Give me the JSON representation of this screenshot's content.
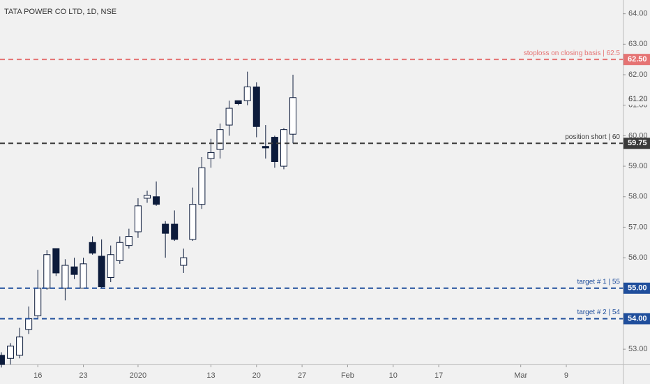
{
  "chart_data": {
    "type": "candlestick",
    "title": "TATA POWER CO LTD, 1D, NSE",
    "open": [
      52.8,
      52.7,
      52.8,
      53.65,
      54.1,
      55.0,
      56.3,
      55.0,
      55.7,
      55.0,
      56.5,
      56.05,
      55.35,
      55.9,
      56.4,
      56.85,
      57.95,
      58.0,
      57.1,
      57.1,
      55.75,
      56.6,
      57.75,
      59.25,
      59.55,
      60.35,
      61.15,
      61.15,
      61.6,
      59.65,
      59.95,
      59.0,
      60.05
    ],
    "high": [
      52.9,
      53.2,
      53.7,
      54.4,
      55.6,
      56.25,
      56.3,
      55.95,
      56.0,
      56.0,
      56.7,
      56.6,
      56.4,
      56.7,
      56.95,
      57.95,
      58.2,
      58.5,
      57.2,
      57.55,
      56.3,
      58.3,
      59.3,
      59.9,
      60.4,
      61.15,
      61.15,
      62.1,
      61.75,
      60.35,
      60.0,
      60.25,
      62.0
    ],
    "low": [
      52.4,
      52.5,
      52.7,
      53.5,
      54.0,
      54.95,
      55.4,
      54.6,
      55.3,
      55.0,
      56.1,
      55.0,
      55.2,
      55.8,
      56.3,
      56.65,
      57.8,
      57.7,
      56.0,
      56.55,
      55.5,
      56.55,
      57.6,
      58.95,
      59.25,
      60.0,
      61.0,
      61.0,
      59.95,
      59.25,
      58.95,
      58.9,
      59.75
    ],
    "close": [
      52.5,
      53.1,
      53.4,
      54.0,
      55.0,
      56.1,
      55.5,
      55.75,
      55.45,
      55.8,
      56.15,
      55.05,
      56.1,
      56.5,
      56.7,
      57.7,
      58.05,
      57.75,
      56.8,
      56.6,
      56.0,
      57.75,
      58.95,
      59.45,
      60.2,
      60.9,
      61.05,
      61.6,
      60.3,
      59.6,
      59.15,
      60.2,
      61.25
    ],
    "up_color": "#ffffff",
    "down_color": "#0c1b3b",
    "outline_color": "#0c1b3b",
    "xlim": [
      -0.15,
      68.2
    ],
    "xticks": [
      {
        "value": 4,
        "label": "16"
      },
      {
        "value": 9,
        "label": "23"
      },
      {
        "value": 15,
        "label": "2020"
      },
      {
        "value": 23,
        "label": "13"
      },
      {
        "value": 28,
        "label": "20"
      },
      {
        "value": 33,
        "label": "27"
      },
      {
        "value": 38,
        "label": "Feb"
      },
      {
        "value": 43,
        "label": "10"
      },
      {
        "value": 48,
        "label": "17"
      },
      {
        "value": 57,
        "label": "Mar"
      },
      {
        "value": 62,
        "label": "9"
      }
    ],
    "ylim": [
      52.5,
      64.45
    ],
    "yticks": [
      {
        "value": 53,
        "label": "53.00"
      },
      {
        "value": 54,
        "label": "54.00"
      },
      {
        "value": 55,
        "label": "55.00"
      },
      {
        "value": 56,
        "label": "56.00"
      },
      {
        "value": 57,
        "label": "57.00"
      },
      {
        "value": 58,
        "label": "58.00"
      },
      {
        "value": 59,
        "label": "59.00"
      },
      {
        "value": 60,
        "label": "60.00"
      },
      {
        "value": 61,
        "label": "61.00"
      },
      {
        "value": 62,
        "label": "62.00"
      },
      {
        "value": 63,
        "label": "63.00"
      },
      {
        "value": 64,
        "label": "64.00"
      }
    ],
    "grid": false,
    "levels": [
      {
        "name": "stoploss on closing basis | 62.5",
        "value": 62.5,
        "value_label": "62.50",
        "color": "#e57373"
      },
      {
        "name": "position short | 60",
        "value": 59.75,
        "value_label": "59.75",
        "color": "#3a3a3a"
      },
      {
        "name": "target # 1 | 55",
        "value": 55,
        "value_label": "55.00",
        "color": "#1f4e9c"
      },
      {
        "name": "target # 2 | 54",
        "value": 54,
        "value_label": "54.00",
        "color": "#1f4e9c"
      }
    ],
    "price_marker": {
      "value": 61.2,
      "label": "61.20"
    }
  }
}
